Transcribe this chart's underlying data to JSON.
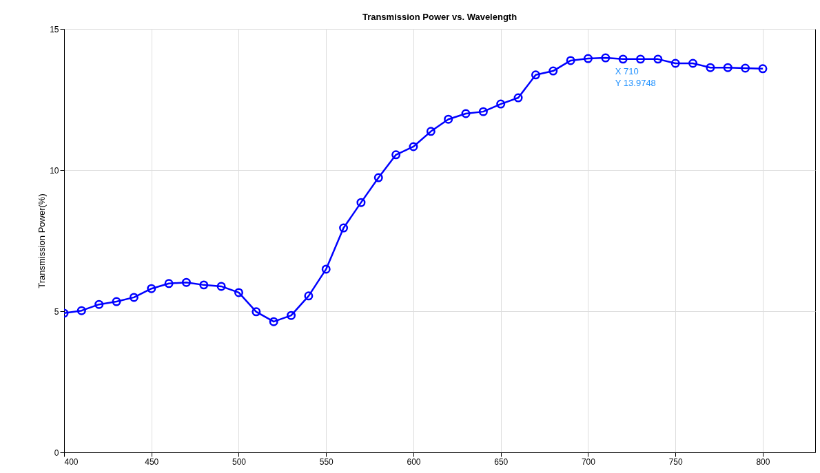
{
  "chart_data": {
    "type": "line",
    "title": "Transmission Power vs. Wavelength",
    "ylabel": "Transmission Power(%)",
    "x": [
      400,
      410,
      420,
      430,
      440,
      450,
      460,
      470,
      480,
      490,
      500,
      510,
      520,
      530,
      540,
      550,
      560,
      570,
      580,
      590,
      600,
      610,
      620,
      630,
      640,
      650,
      660,
      670,
      680,
      690,
      700,
      710,
      720,
      730,
      740,
      750,
      760,
      770,
      780,
      790,
      800
    ],
    "series": [
      {
        "color": "#0000ff",
        "values": [
          4.93,
          5.02,
          5.24,
          5.34,
          5.49,
          5.8,
          5.98,
          6.02,
          5.93,
          5.88,
          5.66,
          4.98,
          4.63,
          4.85,
          5.54,
          6.49,
          7.95,
          8.85,
          9.73,
          10.54,
          10.83,
          11.37,
          11.8,
          12.0,
          12.07,
          12.34,
          12.56,
          13.37,
          13.51,
          13.88,
          13.95,
          13.9748,
          13.93,
          13.93,
          13.93,
          13.78,
          13.78,
          13.63,
          13.63,
          13.61,
          13.59
        ]
      }
    ],
    "xlim": [
      400,
      830
    ],
    "xticks": [
      400,
      450,
      500,
      550,
      600,
      650,
      700,
      750,
      800
    ],
    "ylim": [
      0,
      15
    ],
    "yticks": [
      0,
      5,
      10,
      15
    ],
    "grid": true,
    "marker": "circle",
    "line_style": "solid",
    "annotations": [
      {
        "text": "X 710\nY 13.9748",
        "x": 710,
        "y": 13.9748
      }
    ]
  }
}
